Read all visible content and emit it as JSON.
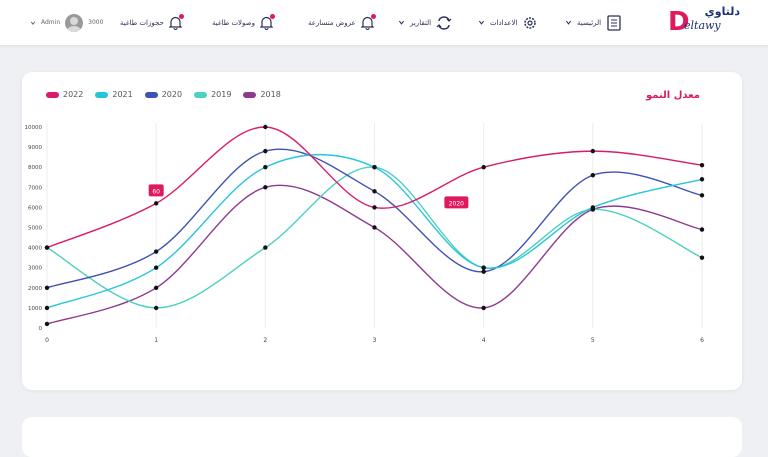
{
  "header": {
    "logo_ar": "دلتاوي",
    "logo_en": "eltawy",
    "logo_d": "D",
    "nav": [
      {
        "label": "الرئيسية",
        "icon": "dashboard-icon"
      },
      {
        "label": "الاعدادات",
        "icon": "gear-icon"
      },
      {
        "label": "التقارير",
        "icon": "sync-icon"
      },
      {
        "label": "عروض متسارعة",
        "icon": "bell-icon"
      },
      {
        "label": "وصولات طاغية",
        "icon": "bell-icon"
      },
      {
        "label": "حجوزات طاغية",
        "icon": "bell-icon"
      }
    ],
    "user_id": "3000",
    "user_name": "Admin"
  },
  "card": {
    "title": "معدل النمو"
  },
  "chart_data": {
    "type": "line",
    "x": [
      0,
      1,
      2,
      3,
      4,
      5,
      6
    ],
    "xlim": [
      0,
      6
    ],
    "ylim": [
      0,
      10000
    ],
    "yticks": [
      0,
      1000,
      2000,
      3000,
      4000,
      5000,
      6000,
      7000,
      8000,
      9000,
      10000
    ],
    "legend_position": "top-left",
    "series": [
      {
        "name": "2022",
        "color": "#d81b6a",
        "values": [
          4000,
          6200,
          10000,
          6000,
          8000,
          8800,
          8100
        ]
      },
      {
        "name": "2021",
        "color": "#26c6da",
        "values": [
          1000,
          3000,
          8000,
          8000,
          3000,
          6000,
          7400
        ]
      },
      {
        "name": "2020",
        "color": "#3f51b5",
        "values": [
          2000,
          3800,
          8800,
          6800,
          2800,
          7600,
          6600
        ]
      },
      {
        "name": "2019",
        "color": "#4dd0c0",
        "values": [
          4000,
          1000,
          4000,
          8000,
          3000,
          5900,
          3500
        ]
      },
      {
        "name": "2018",
        "color": "#8e3a8e",
        "values": [
          200,
          2000,
          7000,
          5000,
          1000,
          5900,
          4900
        ]
      }
    ],
    "annotations": [
      {
        "label": "60",
        "x": 1,
        "y": 6800
      },
      {
        "label": "2020",
        "x": 3.75,
        "y": 6200
      }
    ]
  }
}
